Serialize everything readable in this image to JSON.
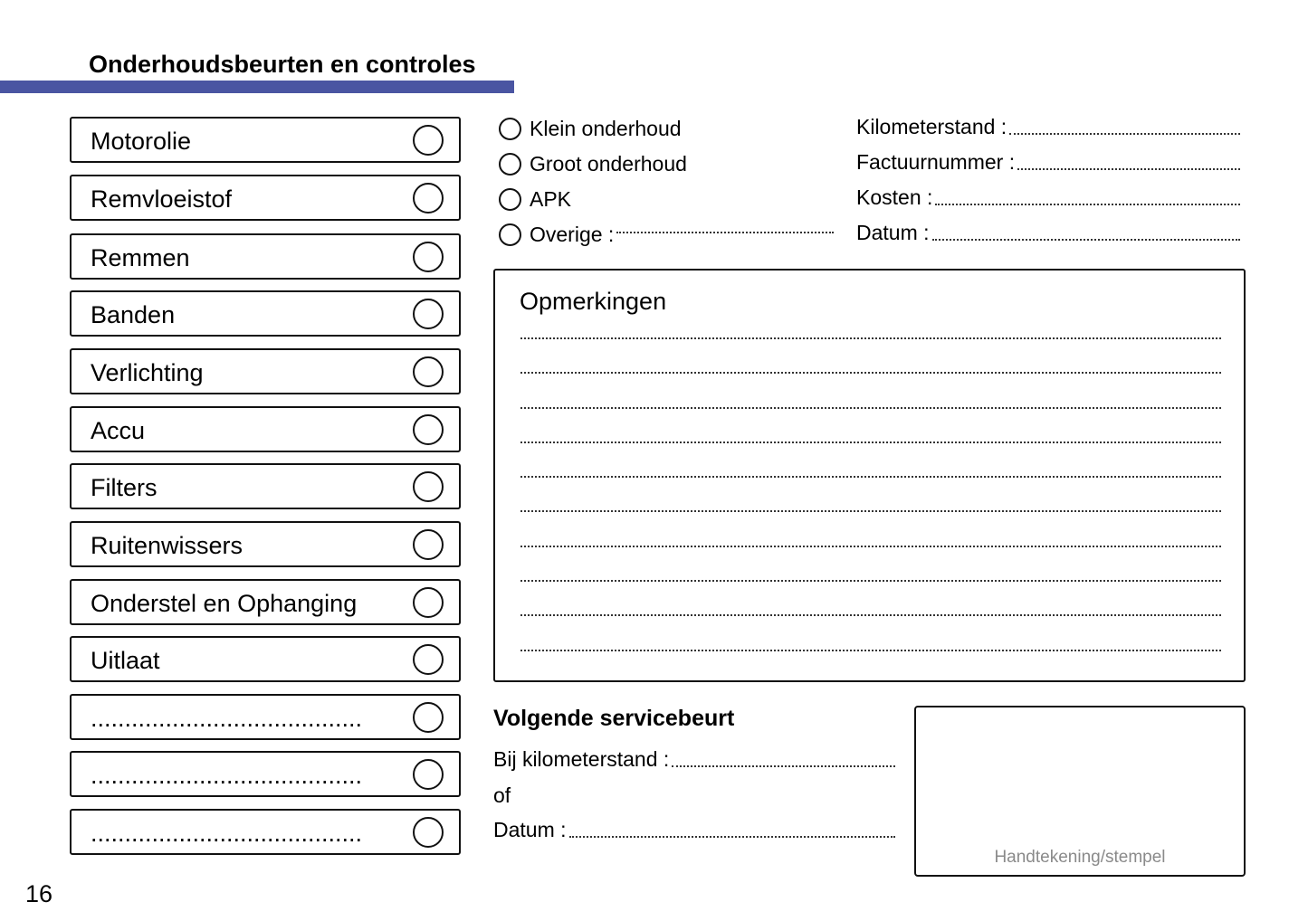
{
  "header": {
    "title": "Onderhoudsbeurten en controles",
    "accent_color": "#4a55a2"
  },
  "checklist": [
    {
      "label": "Motorolie"
    },
    {
      "label": "Remvloeistof"
    },
    {
      "label": "Remmen"
    },
    {
      "label": "Banden"
    },
    {
      "label": "Verlichting"
    },
    {
      "label": "Accu"
    },
    {
      "label": "Filters"
    },
    {
      "label": "Ruitenwissers"
    },
    {
      "label": "Onderstel en Ophanging"
    },
    {
      "label": "Uitlaat"
    },
    {
      "label": "........................................"
    },
    {
      "label": "........................................"
    },
    {
      "label": "........................................"
    }
  ],
  "service_types": [
    {
      "label": "Klein onderhoud"
    },
    {
      "label": "Groot onderhoud"
    },
    {
      "label": "APK"
    },
    {
      "label": "Overige :"
    }
  ],
  "fields": [
    {
      "label": "Kilometerstand :"
    },
    {
      "label": "Factuurnummer :"
    },
    {
      "label": "Kosten :"
    },
    {
      "label": "Datum :"
    }
  ],
  "remarks": {
    "title": "Opmerkingen"
  },
  "next_service": {
    "title": "Volgende servicebeurt",
    "km_label": "Bij kilometerstand :",
    "or_label": "of",
    "date_label": "Datum :"
  },
  "signature": {
    "label": "Handtekening/stempel"
  },
  "page_number": "16"
}
